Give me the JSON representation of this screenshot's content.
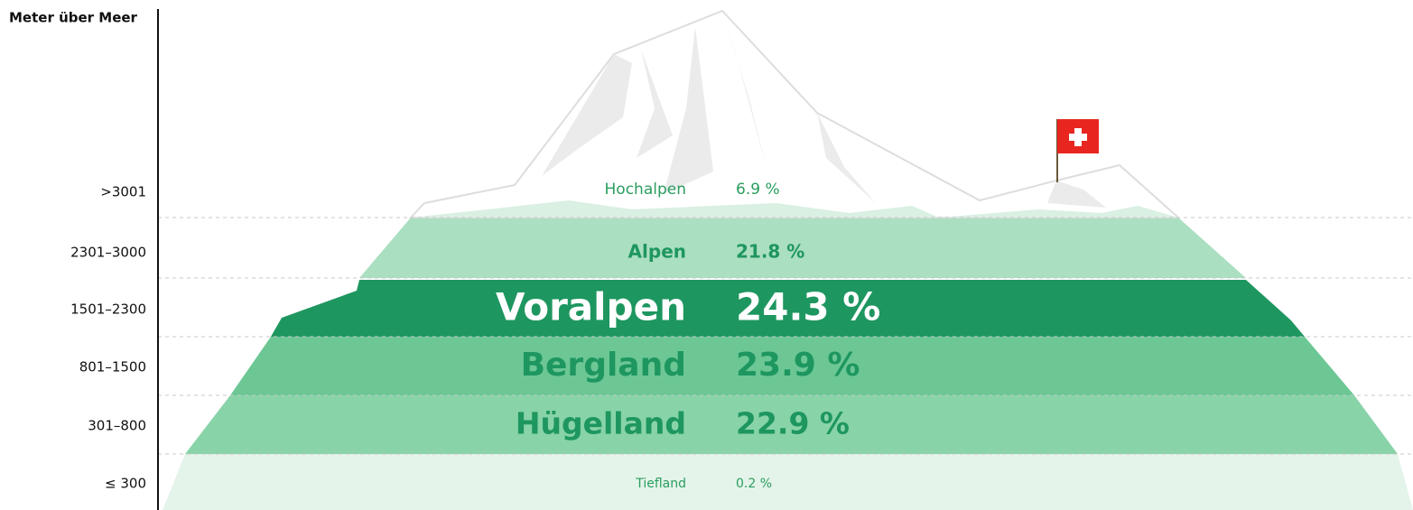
{
  "axis_title": "Meter über Meer",
  "bands": [
    {
      "range": ">3001",
      "name": "Hochalpen",
      "share": "6.9 %"
    },
    {
      "range": "2301–3000",
      "name": "Alpen",
      "share": "21.8 %"
    },
    {
      "range": "1501–2300",
      "name": "Voralpen",
      "share": "24.3 %"
    },
    {
      "range": "801–1500",
      "name": "Bergland",
      "share": "23.9 %"
    },
    {
      "range": "301–800",
      "name": "Hügelland",
      "share": "22.9 %"
    },
    {
      "range": "≤ 300",
      "name": "Tiefland",
      "share": "0.2 %"
    }
  ]
}
